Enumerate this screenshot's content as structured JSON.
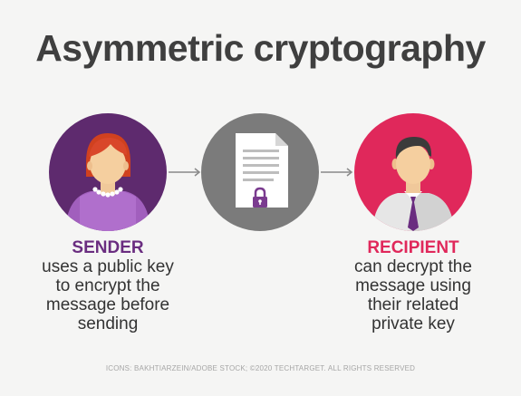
{
  "title": "Asymmetric cryptography",
  "sender": {
    "role": "SENDER",
    "description_lines": [
      "uses a public key",
      "to encrypt the",
      "message before",
      "sending"
    ],
    "icon": "woman-avatar-icon",
    "color": "#5e2a6e"
  },
  "document": {
    "icon": "locked-document-icon",
    "color": "#7b7b7b"
  },
  "recipient": {
    "role": "RECIPIENT",
    "description_lines": [
      "can decrypt the",
      "message using",
      "their related",
      "private key"
    ],
    "icon": "man-avatar-icon",
    "color": "#e0285b"
  },
  "credits": "ICONS: BAKHTIARZEIN/ADOBE STOCK; ©2020 TECHTARGET. ALL RIGHTS RESERVED"
}
